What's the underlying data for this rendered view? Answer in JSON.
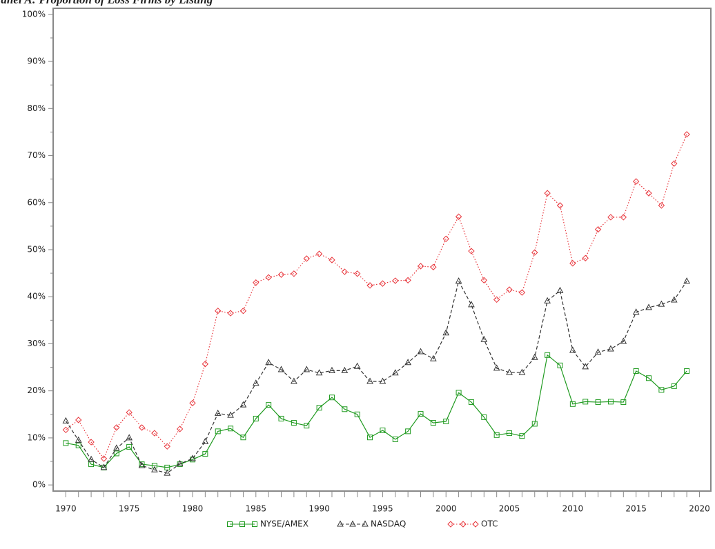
{
  "chart_data": {
    "type": "line",
    "title": "Panel A: Proportion of Loss Firms by Listing",
    "x": [
      1970,
      1971,
      1972,
      1973,
      1974,
      1975,
      1976,
      1977,
      1978,
      1979,
      1980,
      1981,
      1982,
      1983,
      1984,
      1985,
      1986,
      1987,
      1988,
      1989,
      1990,
      1991,
      1992,
      1993,
      1994,
      1995,
      1996,
      1997,
      1998,
      1999,
      2000,
      2001,
      2002,
      2003,
      2004,
      2005,
      2006,
      2007,
      2008,
      2009,
      2010,
      2011,
      2012,
      2013,
      2014,
      2015,
      2016,
      2017,
      2018,
      2019
    ],
    "series": [
      {
        "name": "NYSE/AMEX",
        "color": "#1f9a1f",
        "marker": "square",
        "dash": "solid",
        "values": [
          8.9,
          8.4,
          4.4,
          3.7,
          6.7,
          8.1,
          4.4,
          4.1,
          3.7,
          4.4,
          5.4,
          6.6,
          11.4,
          12.0,
          10.1,
          14.1,
          17.0,
          14.1,
          13.2,
          12.6,
          16.4,
          18.6,
          16.1,
          15.0,
          10.1,
          11.6,
          9.7,
          11.4,
          15.1,
          13.2,
          13.5,
          19.6,
          17.6,
          14.4,
          10.6,
          11.0,
          10.4,
          13.0,
          27.6,
          25.4,
          17.2,
          17.7,
          17.6,
          17.7,
          17.6,
          24.2,
          22.7,
          20.2,
          21.0,
          24.2
        ]
      },
      {
        "name": "NASDAQ",
        "color": "#333333",
        "marker": "triangle",
        "dash": "dashed",
        "values": [
          13.6,
          9.5,
          5.4,
          3.7,
          7.8,
          10.0,
          4.1,
          3.2,
          2.5,
          4.5,
          5.6,
          9.2,
          15.2,
          14.8,
          17.0,
          21.6,
          26.0,
          24.5,
          22.0,
          24.5,
          23.8,
          24.3,
          24.3,
          25.2,
          22.0,
          22.0,
          23.8,
          26.0,
          28.3,
          26.8,
          32.3,
          43.3,
          38.3,
          30.9,
          24.8,
          23.9,
          23.9,
          27.1,
          39.1,
          41.3,
          28.6,
          25.1,
          28.2,
          28.9,
          30.5,
          36.7,
          37.7,
          38.4,
          39.3,
          43.3
        ]
      },
      {
        "name": "OTC",
        "color": "#e8343a",
        "marker": "diamond",
        "dash": "dotted",
        "values": [
          11.7,
          13.8,
          9.1,
          5.6,
          12.2,
          15.4,
          12.2,
          11.0,
          8.2,
          11.9,
          17.4,
          25.7,
          37.0,
          36.5,
          37.0,
          43.0,
          44.1,
          44.7,
          44.9,
          48.1,
          49.1,
          47.8,
          45.3,
          44.9,
          42.4,
          42.8,
          43.4,
          43.5,
          46.5,
          46.3,
          52.3,
          57.0,
          49.7,
          43.5,
          39.4,
          41.5,
          40.9,
          49.4,
          62.0,
          59.4,
          47.1,
          48.2,
          54.3,
          56.9,
          56.9,
          64.5,
          62.0,
          59.4,
          68.3,
          74.5
        ]
      }
    ],
    "xlim": [
      1969,
      2020.9
    ],
    "xticks": [
      1970,
      1975,
      1980,
      1985,
      1990,
      1995,
      2000,
      2005,
      2010,
      2015,
      2020
    ],
    "ylim": [
      -1.3,
      101.3
    ],
    "yticks": [
      {
        "value": 0,
        "label": "0%"
      },
      {
        "value": 10,
        "label": "10%"
      },
      {
        "value": 20,
        "label": "20%"
      },
      {
        "value": 30,
        "label": "30%"
      },
      {
        "value": 40,
        "label": "40%"
      },
      {
        "value": 50,
        "label": "50%"
      },
      {
        "value": 60,
        "label": "60%"
      },
      {
        "value": 70,
        "label": "70%"
      },
      {
        "value": 80,
        "label": "80%"
      },
      {
        "value": 90,
        "label": "90%"
      },
      {
        "value": 100,
        "label": "100%"
      }
    ],
    "legend": "bottom"
  }
}
